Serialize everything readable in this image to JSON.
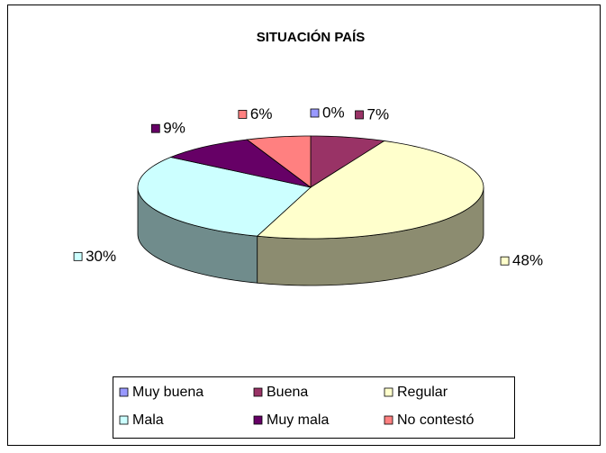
{
  "chart_data": {
    "type": "pie3d",
    "title": "SITUACIÓN PAÍS",
    "categories": [
      "Muy buena",
      "Buena",
      "Regular",
      "Mala",
      "Muy mala",
      "No contestó"
    ],
    "values": [
      0,
      7,
      48,
      30,
      9,
      6
    ],
    "value_labels": [
      "0%",
      "7%",
      "48%",
      "30%",
      "9%",
      "6%"
    ],
    "colors": [
      "#9999ff",
      "#993366",
      "#ffffcc",
      "#ccffff",
      "#660066",
      "#ff8080"
    ],
    "legend": "bottom"
  }
}
